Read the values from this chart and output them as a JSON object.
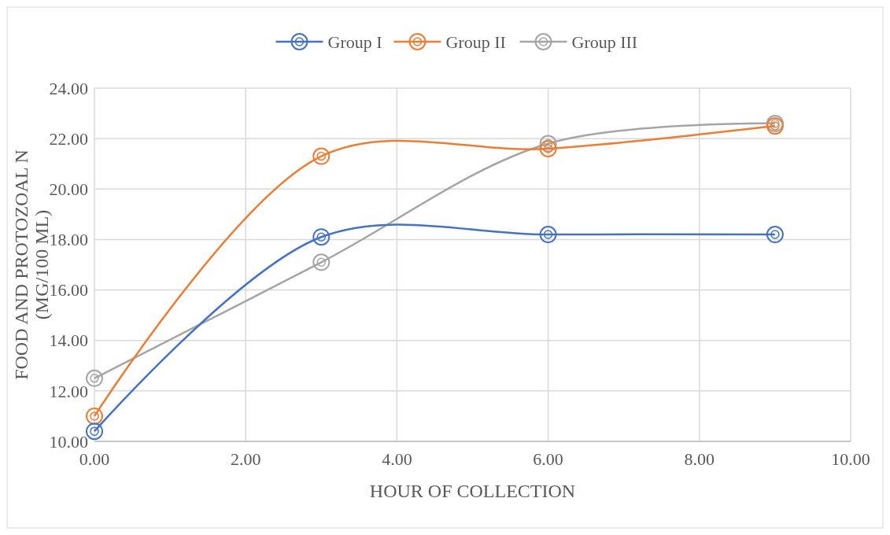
{
  "chart_data": {
    "type": "line",
    "xlabel": "HOUR OF COLLECTION",
    "ylabel": "FOOD AND PROTOZOAL  N (MG/100 ML)",
    "x": [
      0,
      3,
      6,
      9
    ],
    "series": [
      {
        "name": "Group I",
        "color": "#4472c4",
        "values": [
          10.4,
          18.1,
          18.2,
          18.2
        ]
      },
      {
        "name": "Group II",
        "color": "#ed7d31",
        "values": [
          11.0,
          21.3,
          21.6,
          22.5
        ]
      },
      {
        "name": "Group III",
        "color": "#a5a5a5",
        "values": [
          12.5,
          17.1,
          21.8,
          22.6
        ]
      }
    ],
    "xlim": [
      0,
      10
    ],
    "xticks": [
      {
        "value": 0,
        "label": "0.00"
      },
      {
        "value": 2,
        "label": "2.00"
      },
      {
        "value": 4,
        "label": "4.00"
      },
      {
        "value": 6,
        "label": "6.00"
      },
      {
        "value": 8,
        "label": "8.00"
      },
      {
        "value": 10,
        "label": "10.00"
      }
    ],
    "ylim": [
      10,
      24
    ],
    "yticks": [
      {
        "value": 10,
        "label": "10.00"
      },
      {
        "value": 12,
        "label": "12.00"
      },
      {
        "value": 14,
        "label": "14.00"
      },
      {
        "value": 16,
        "label": "16.00"
      },
      {
        "value": 18,
        "label": "18.00"
      },
      {
        "value": 20,
        "label": "20.00"
      },
      {
        "value": 22,
        "label": "22.00"
      },
      {
        "value": 24,
        "label": "24.00"
      }
    ],
    "grid": true,
    "legend": "top",
    "marker": "circle",
    "line_style": "solid"
  }
}
